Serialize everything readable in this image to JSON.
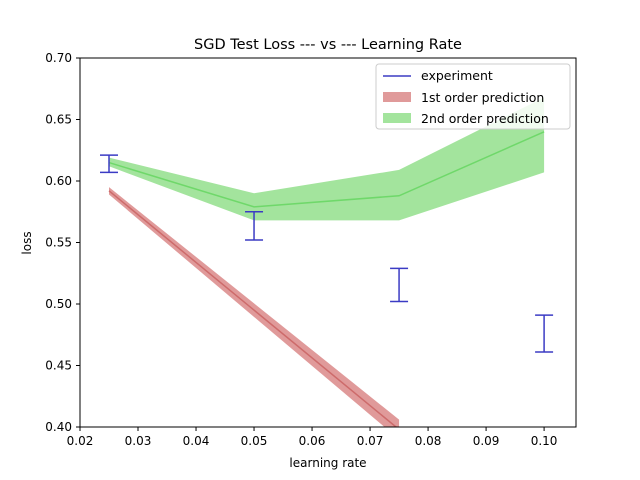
{
  "chart_data": {
    "type": "line",
    "title": "SGD Test Loss --- vs --- Learning Rate",
    "xlabel": "learning rate",
    "ylabel": "loss",
    "xlim": [
      0.02,
      0.1055
    ],
    "ylim": [
      0.4,
      0.7
    ],
    "x_ticks": [
      {
        "value": 0.02,
        "label": "0.02"
      },
      {
        "value": 0.03,
        "label": "0.03"
      },
      {
        "value": 0.04,
        "label": "0.04"
      },
      {
        "value": 0.05,
        "label": "0.05"
      },
      {
        "value": 0.06,
        "label": "0.06"
      },
      {
        "value": 0.07,
        "label": "0.07"
      },
      {
        "value": 0.08,
        "label": "0.08"
      },
      {
        "value": 0.09,
        "label": "0.09"
      },
      {
        "value": 0.1,
        "label": "0.10"
      }
    ],
    "y_ticks": [
      {
        "value": 0.4,
        "label": "0.40"
      },
      {
        "value": 0.45,
        "label": "0.45"
      },
      {
        "value": 0.5,
        "label": "0.50"
      },
      {
        "value": 0.55,
        "label": "0.55"
      },
      {
        "value": 0.6,
        "label": "0.60"
      },
      {
        "value": 0.65,
        "label": "0.65"
      },
      {
        "value": 0.7,
        "label": "0.70"
      }
    ],
    "grid": false,
    "legend_position": "top-right",
    "colors": {
      "experiment": "#3b3bc4",
      "first_order_band": "#e09a9a",
      "first_order_line": "#cd6b6b",
      "second_order_band": "#a3e49d",
      "second_order_line": "#6fd86a"
    },
    "series": [
      {
        "name": "experiment",
        "kind": "errorbar",
        "points": [
          {
            "x": 0.025,
            "low": 0.607,
            "high": 0.621
          },
          {
            "x": 0.05,
            "low": 0.552,
            "high": 0.575
          },
          {
            "x": 0.075,
            "low": 0.502,
            "high": 0.529
          },
          {
            "x": 0.1,
            "low": 0.461,
            "high": 0.491
          }
        ]
      },
      {
        "name": "1st order prediction",
        "kind": "band",
        "x": [
          0.025,
          0.075
        ],
        "mean": [
          0.592,
          0.398
        ],
        "low": [
          0.589,
          0.39
        ],
        "high": [
          0.595,
          0.406
        ]
      },
      {
        "name": "2nd order prediction",
        "kind": "band",
        "x": [
          0.025,
          0.05,
          0.075,
          0.1
        ],
        "mean": [
          0.615,
          0.579,
          0.588,
          0.64
        ],
        "low": [
          0.612,
          0.568,
          0.568,
          0.607
        ],
        "high": [
          0.619,
          0.59,
          0.609,
          0.668
        ]
      }
    ]
  }
}
